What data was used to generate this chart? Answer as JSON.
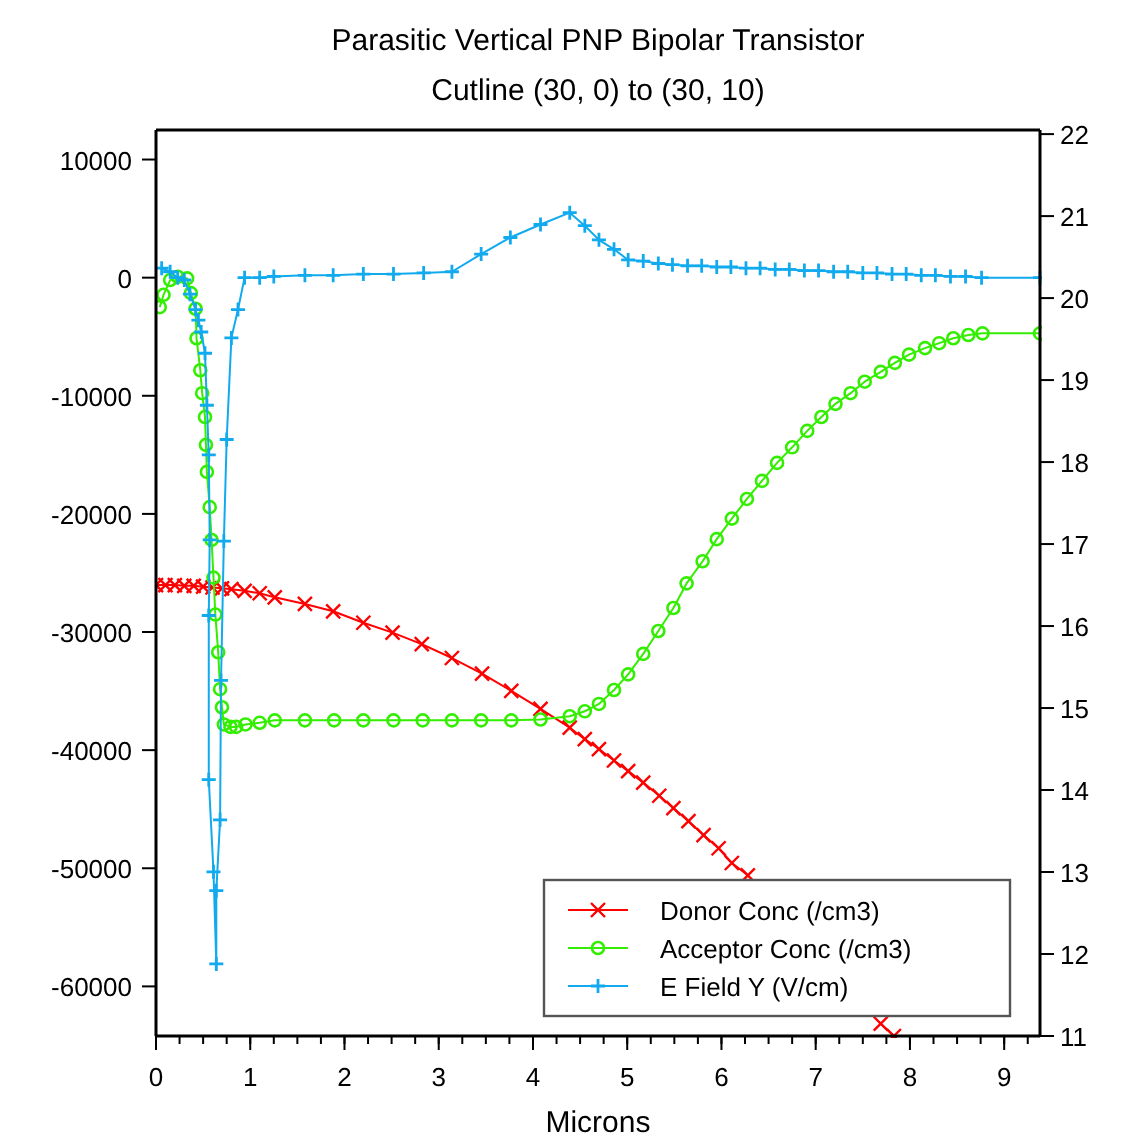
{
  "chart_data": {
    "type": "line",
    "title": "Parasitic Vertical PNP Bipolar Transistor",
    "subtitle": "Cutline (30, 0) to (30, 10)",
    "xlabel": "Microns",
    "xlim": [
      0,
      9.38
    ],
    "xticks": [
      0,
      1,
      2,
      3,
      4,
      5,
      6,
      7,
      8,
      9
    ],
    "ylim": [
      -64200,
      12500
    ],
    "yticks": [
      -60000,
      -50000,
      -40000,
      -30000,
      -20000,
      -10000,
      0,
      10000
    ],
    "y2lim": [
      11,
      22.05
    ],
    "y2ticks": [
      11,
      12,
      13,
      14,
      15,
      16,
      17,
      18,
      19,
      20,
      21,
      22
    ],
    "legend": "bottom right",
    "grid": false,
    "line_style": "solid",
    "series": [
      {
        "name": "Donor Conc (/cm3)",
        "color": "#ff0000",
        "axis": "y2",
        "marker": "x",
        "x": [
          0,
          0.1,
          0.2,
          0.3,
          0.4,
          0.5,
          0.6,
          0.7,
          0.8,
          0.94,
          1.1,
          1.26,
          1.58,
          1.88,
          2.2,
          2.51,
          2.82,
          3.14,
          3.46,
          3.77,
          4.08,
          4.39,
          4.55,
          4.7,
          4.86,
          5.01,
          5.17,
          5.34,
          5.49,
          5.65,
          5.81,
          5.97,
          6.11,
          6.28,
          7,
          7.69,
          7.83
        ],
        "values": [
          16.5,
          16.5,
          16.5,
          16.49,
          16.49,
          16.48,
          16.47,
          16.46,
          16.45,
          16.43,
          16.4,
          16.35,
          16.27,
          16.18,
          16.04,
          15.92,
          15.78,
          15.61,
          15.42,
          15.21,
          14.99,
          14.76,
          14.62,
          14.5,
          14.36,
          14.23,
          14.09,
          13.93,
          13.78,
          13.62,
          13.45,
          13.29,
          13.11,
          12.96,
          null,
          11.15,
          11.0
        ]
      },
      {
        "name": "Acceptor Conc (/cm3)",
        "color": "#33ee00",
        "axis": "y2",
        "marker": "circle",
        "x": [
          0.04,
          0.08,
          0.15,
          0.23,
          0.33,
          0.37,
          0.42,
          0.43,
          0.47,
          0.49,
          0.52,
          0.53,
          0.54,
          0.57,
          0.59,
          0.61,
          0.63,
          0.66,
          0.68,
          0.7,
          0.72,
          0.79,
          0.85,
          0.95,
          1.1,
          1.26,
          1.58,
          1.89,
          2.2,
          2.52,
          2.83,
          3.14,
          3.45,
          3.77,
          4.08,
          4.39,
          4.55,
          4.7,
          4.86,
          5.01,
          5.17,
          5.33,
          5.49,
          5.63,
          5.8,
          5.95,
          6.11,
          6.27,
          6.43,
          6.59,
          6.75,
          6.91,
          7.06,
          7.21,
          7.37,
          7.52,
          7.69,
          7.84,
          7.99,
          8.16,
          8.31,
          8.46,
          8.62,
          8.77,
          9.38
        ],
        "values": [
          19.89,
          20.04,
          20.22,
          20.26,
          20.24,
          20.06,
          19.87,
          19.51,
          19.12,
          18.84,
          18.55,
          18.21,
          17.88,
          17.45,
          17.05,
          16.59,
          16.14,
          15.68,
          15.23,
          15.01,
          14.8,
          14.77,
          14.77,
          14.8,
          14.82,
          14.85,
          14.85,
          14.85,
          14.85,
          14.85,
          14.85,
          14.85,
          14.85,
          14.85,
          14.86,
          14.9,
          14.96,
          15.05,
          15.22,
          15.41,
          15.66,
          15.94,
          16.22,
          16.52,
          16.79,
          17.06,
          17.31,
          17.55,
          17.77,
          17.99,
          18.18,
          18.38,
          18.55,
          18.71,
          18.84,
          18.98,
          19.1,
          19.21,
          19.31,
          19.39,
          19.45,
          19.51,
          19.55,
          19.57,
          19.57
        ]
      },
      {
        "name": "E Field Y (V/cm)",
        "color": "#11aaee",
        "marker": "cross",
        "x": [
          0.06,
          0.15,
          0.23,
          0.3,
          0.36,
          0.42,
          0.45,
          0.48,
          0.52,
          0.54,
          0.56,
          0.57,
          0.56,
          0.56,
          0.61,
          0.64,
          0.64,
          0.68,
          0.69,
          0.72,
          0.75,
          0.8,
          0.87,
          0.94,
          1.1,
          1.25,
          1.58,
          1.88,
          2.2,
          2.52,
          2.84,
          3.14,
          3.45,
          3.76,
          4.08,
          4.39,
          4.55,
          4.7,
          4.86,
          5.01,
          5.17,
          5.33,
          5.48,
          5.64,
          5.79,
          5.95,
          6.1,
          6.26,
          6.41,
          6.57,
          6.72,
          6.88,
          7.03,
          7.19,
          7.34,
          7.5,
          7.65,
          7.81,
          7.96,
          8.12,
          8.27,
          8.43,
          8.59,
          8.76,
          9.38
        ],
        "values": [
          800,
          500,
          0,
          -200,
          -1400,
          -2700,
          -3600,
          -4600,
          -6400,
          -10800,
          -15000,
          -22200,
          -28600,
          -42500,
          -50300,
          -58100,
          -51900,
          -45900,
          -34100,
          -22300,
          -13700,
          -5100,
          -2700,
          0,
          0,
          100,
          200,
          200,
          300,
          300,
          400,
          500,
          2000,
          3400,
          4500,
          5500,
          4400,
          3200,
          2400,
          1500,
          1400,
          1200,
          1100,
          1000,
          1000,
          900,
          900,
          800,
          800,
          700,
          700,
          600,
          600,
          500,
          500,
          400,
          400,
          300,
          300,
          200,
          200,
          100,
          100,
          0,
          0
        ]
      }
    ]
  }
}
